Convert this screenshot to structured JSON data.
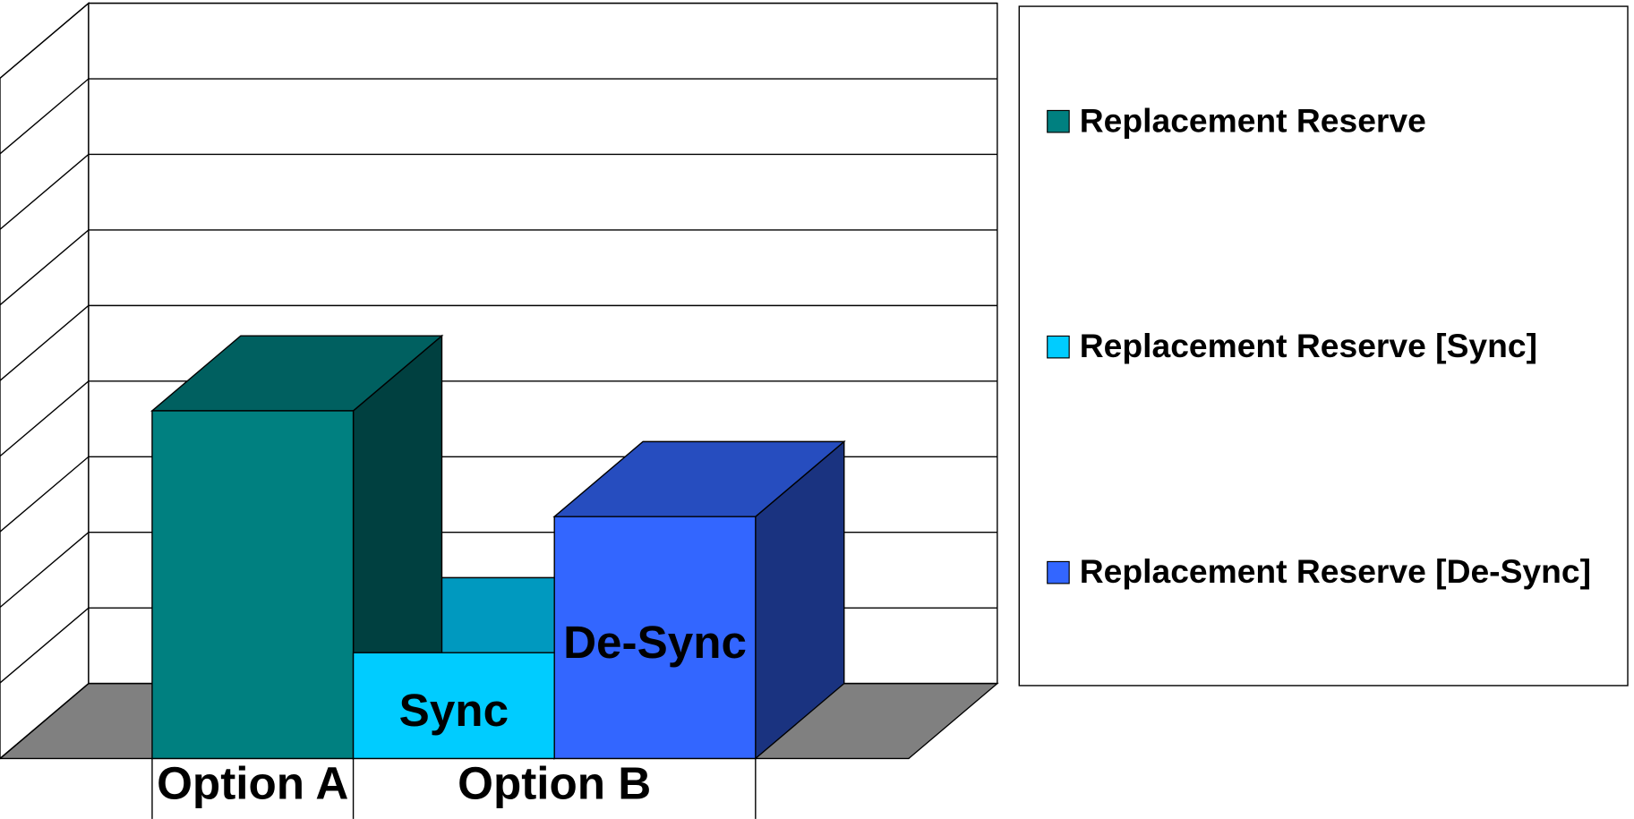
{
  "chart_data": {
    "type": "bar3d",
    "categories": [
      "Option A",
      "Option B"
    ],
    "series": [
      {
        "name": "Replacement Reserve",
        "color": "#008080",
        "values": [
          4.6,
          null
        ]
      },
      {
        "name": "Replacement Reserve [Sync]",
        "color": "#00ccff",
        "values": [
          null,
          1.4
        ],
        "bar_label": "Sync"
      },
      {
        "name": "Replacement Reserve [De-Sync]",
        "color": "#3366ff",
        "values": [
          null,
          3.2
        ],
        "bar_label": "De-Sync"
      }
    ],
    "ylim": [
      0,
      9
    ],
    "yticks": [
      0,
      1,
      2,
      3,
      4,
      5,
      6,
      7,
      8,
      9
    ],
    "grid": true,
    "legend": "right"
  }
}
